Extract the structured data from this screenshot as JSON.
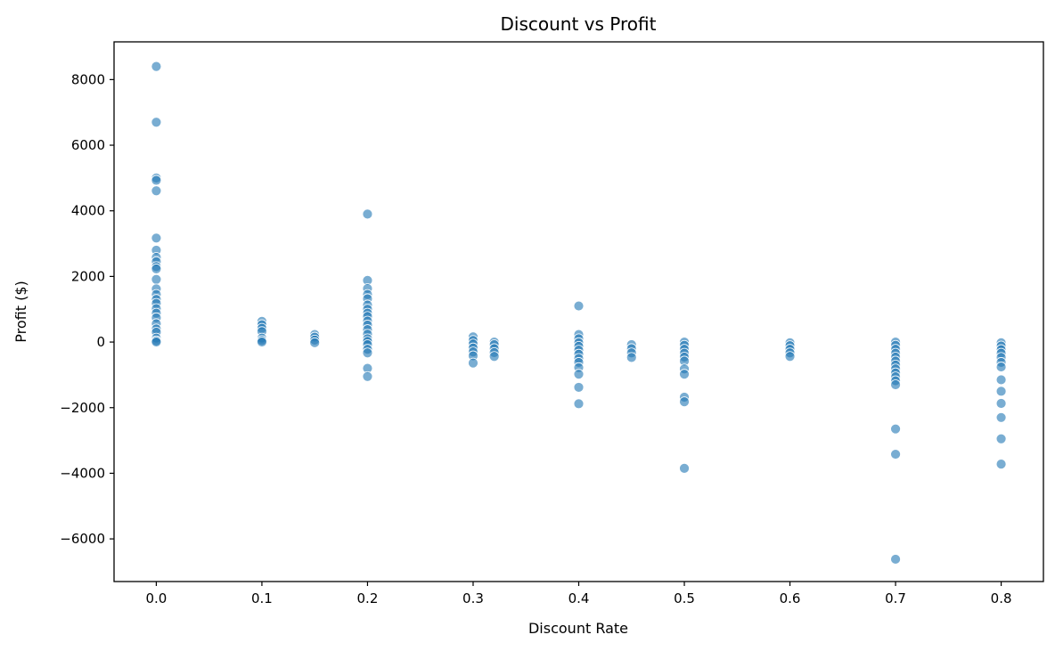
{
  "chart_data": {
    "type": "scatter",
    "title": "Discount vs Profit",
    "xlabel": "Discount Rate",
    "ylabel": "Profit ($)",
    "xlim": [
      -0.04,
      0.84
    ],
    "ylim": [
      -7300,
      9150
    ],
    "xticks": [
      0.0,
      0.1,
      0.2,
      0.3,
      0.4,
      0.5,
      0.6,
      0.7,
      0.8
    ],
    "xtick_labels": [
      "0.0",
      "0.1",
      "0.2",
      "0.3",
      "0.4",
      "0.5",
      "0.6",
      "0.7",
      "0.8"
    ],
    "yticks": [
      -6000,
      -4000,
      -2000,
      0,
      2000,
      4000,
      6000,
      8000
    ],
    "ytick_labels": [
      "−6000",
      "−4000",
      "−2000",
      "0",
      "2000",
      "4000",
      "6000",
      "8000"
    ],
    "grid": false,
    "legend": "none",
    "point_color": "#1f77b4",
    "point_opacity": 0.6,
    "points": [
      {
        "x": 0.0,
        "y": 8400
      },
      {
        "x": 0.0,
        "y": 6700
      },
      {
        "x": 0.0,
        "y": 5000
      },
      {
        "x": 0.0,
        "y": 4930
      },
      {
        "x": 0.0,
        "y": 4610
      },
      {
        "x": 0.0,
        "y": 3170
      },
      {
        "x": 0.0,
        "y": 2800
      },
      {
        "x": 0.0,
        "y": 2580
      },
      {
        "x": 0.0,
        "y": 2450
      },
      {
        "x": 0.0,
        "y": 2300
      },
      {
        "x": 0.0,
        "y": 2230
      },
      {
        "x": 0.0,
        "y": 1910
      },
      {
        "x": 0.0,
        "y": 1620
      },
      {
        "x": 0.0,
        "y": 1450
      },
      {
        "x": 0.0,
        "y": 1300
      },
      {
        "x": 0.0,
        "y": 1180
      },
      {
        "x": 0.0,
        "y": 1020
      },
      {
        "x": 0.0,
        "y": 880
      },
      {
        "x": 0.0,
        "y": 740
      },
      {
        "x": 0.0,
        "y": 560
      },
      {
        "x": 0.0,
        "y": 400
      },
      {
        "x": 0.0,
        "y": 300
      },
      {
        "x": 0.0,
        "y": 120
      },
      {
        "x": 0.0,
        "y": 40
      },
      {
        "x": 0.0,
        "y": 0
      },
      {
        "x": 0.1,
        "y": 630
      },
      {
        "x": 0.1,
        "y": 530
      },
      {
        "x": 0.1,
        "y": 420
      },
      {
        "x": 0.1,
        "y": 320
      },
      {
        "x": 0.1,
        "y": 120
      },
      {
        "x": 0.1,
        "y": 50
      },
      {
        "x": 0.1,
        "y": 0
      },
      {
        "x": 0.15,
        "y": 230
      },
      {
        "x": 0.15,
        "y": 150
      },
      {
        "x": 0.15,
        "y": 60
      },
      {
        "x": 0.15,
        "y": -20
      },
      {
        "x": 0.2,
        "y": 3900
      },
      {
        "x": 0.2,
        "y": 1880
      },
      {
        "x": 0.2,
        "y": 1630
      },
      {
        "x": 0.2,
        "y": 1450
      },
      {
        "x": 0.2,
        "y": 1320
      },
      {
        "x": 0.2,
        "y": 1130
      },
      {
        "x": 0.2,
        "y": 1000
      },
      {
        "x": 0.2,
        "y": 880
      },
      {
        "x": 0.2,
        "y": 780
      },
      {
        "x": 0.2,
        "y": 640
      },
      {
        "x": 0.2,
        "y": 520
      },
      {
        "x": 0.2,
        "y": 380
      },
      {
        "x": 0.2,
        "y": 240
      },
      {
        "x": 0.2,
        "y": 100
      },
      {
        "x": 0.2,
        "y": 20
      },
      {
        "x": 0.2,
        "y": -80
      },
      {
        "x": 0.2,
        "y": -220
      },
      {
        "x": 0.2,
        "y": -330
      },
      {
        "x": 0.2,
        "y": -800
      },
      {
        "x": 0.2,
        "y": -1050
      },
      {
        "x": 0.3,
        "y": 160
      },
      {
        "x": 0.3,
        "y": 50
      },
      {
        "x": 0.3,
        "y": -60
      },
      {
        "x": 0.3,
        "y": -180
      },
      {
        "x": 0.3,
        "y": -300
      },
      {
        "x": 0.3,
        "y": -420
      },
      {
        "x": 0.3,
        "y": -640
      },
      {
        "x": 0.32,
        "y": 0
      },
      {
        "x": 0.32,
        "y": -80
      },
      {
        "x": 0.32,
        "y": -200
      },
      {
        "x": 0.32,
        "y": -320
      },
      {
        "x": 0.32,
        "y": -440
      },
      {
        "x": 0.4,
        "y": 1100
      },
      {
        "x": 0.4,
        "y": 230
      },
      {
        "x": 0.4,
        "y": 100
      },
      {
        "x": 0.4,
        "y": -20
      },
      {
        "x": 0.4,
        "y": -130
      },
      {
        "x": 0.4,
        "y": -250
      },
      {
        "x": 0.4,
        "y": -370
      },
      {
        "x": 0.4,
        "y": -500
      },
      {
        "x": 0.4,
        "y": -620
      },
      {
        "x": 0.4,
        "y": -780
      },
      {
        "x": 0.4,
        "y": -980
      },
      {
        "x": 0.4,
        "y": -1380
      },
      {
        "x": 0.4,
        "y": -1880
      },
      {
        "x": 0.45,
        "y": -80
      },
      {
        "x": 0.45,
        "y": -200
      },
      {
        "x": 0.45,
        "y": -330
      },
      {
        "x": 0.45,
        "y": -470
      },
      {
        "x": 0.5,
        "y": 0
      },
      {
        "x": 0.5,
        "y": -100
      },
      {
        "x": 0.5,
        "y": -220
      },
      {
        "x": 0.5,
        "y": -340
      },
      {
        "x": 0.5,
        "y": -460
      },
      {
        "x": 0.5,
        "y": -580
      },
      {
        "x": 0.5,
        "y": -820
      },
      {
        "x": 0.5,
        "y": -980
      },
      {
        "x": 0.5,
        "y": -1680
      },
      {
        "x": 0.5,
        "y": -1820
      },
      {
        "x": 0.5,
        "y": -3850
      },
      {
        "x": 0.6,
        "y": -20
      },
      {
        "x": 0.6,
        "y": -110
      },
      {
        "x": 0.6,
        "y": -220
      },
      {
        "x": 0.6,
        "y": -330
      },
      {
        "x": 0.6,
        "y": -440
      },
      {
        "x": 0.7,
        "y": 0
      },
      {
        "x": 0.7,
        "y": -100
      },
      {
        "x": 0.7,
        "y": -220
      },
      {
        "x": 0.7,
        "y": -340
      },
      {
        "x": 0.7,
        "y": -460
      },
      {
        "x": 0.7,
        "y": -580
      },
      {
        "x": 0.7,
        "y": -700
      },
      {
        "x": 0.7,
        "y": -820
      },
      {
        "x": 0.7,
        "y": -940
      },
      {
        "x": 0.7,
        "y": -1060
      },
      {
        "x": 0.7,
        "y": -1180
      },
      {
        "x": 0.7,
        "y": -1300
      },
      {
        "x": 0.7,
        "y": -2650
      },
      {
        "x": 0.7,
        "y": -3420
      },
      {
        "x": 0.7,
        "y": -6620
      },
      {
        "x": 0.8,
        "y": -20
      },
      {
        "x": 0.8,
        "y": -120
      },
      {
        "x": 0.8,
        "y": -230
      },
      {
        "x": 0.8,
        "y": -340
      },
      {
        "x": 0.8,
        "y": -470
      },
      {
        "x": 0.8,
        "y": -620
      },
      {
        "x": 0.8,
        "y": -760
      },
      {
        "x": 0.8,
        "y": -1150
      },
      {
        "x": 0.8,
        "y": -1500
      },
      {
        "x": 0.8,
        "y": -1870
      },
      {
        "x": 0.8,
        "y": -2300
      },
      {
        "x": 0.8,
        "y": -2950
      },
      {
        "x": 0.8,
        "y": -3720
      }
    ]
  }
}
